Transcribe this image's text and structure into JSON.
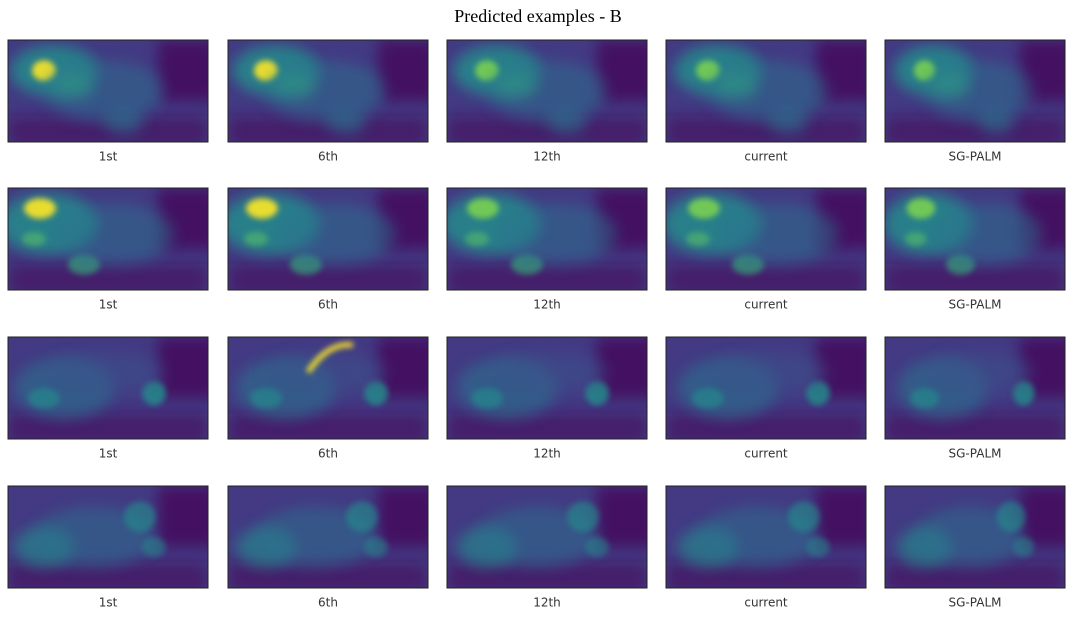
{
  "title": "Predicted examples - B",
  "rows": [
    [
      "1st",
      "6th",
      "12th",
      "current",
      "SG-PALM"
    ],
    [
      "1st",
      "6th",
      "12th",
      "current",
      "SG-PALM"
    ],
    [
      "1st",
      "6th",
      "12th",
      "current",
      "SG-PALM"
    ],
    [
      "1st",
      "6th",
      "12th",
      "current",
      "SG-PALM"
    ]
  ]
}
